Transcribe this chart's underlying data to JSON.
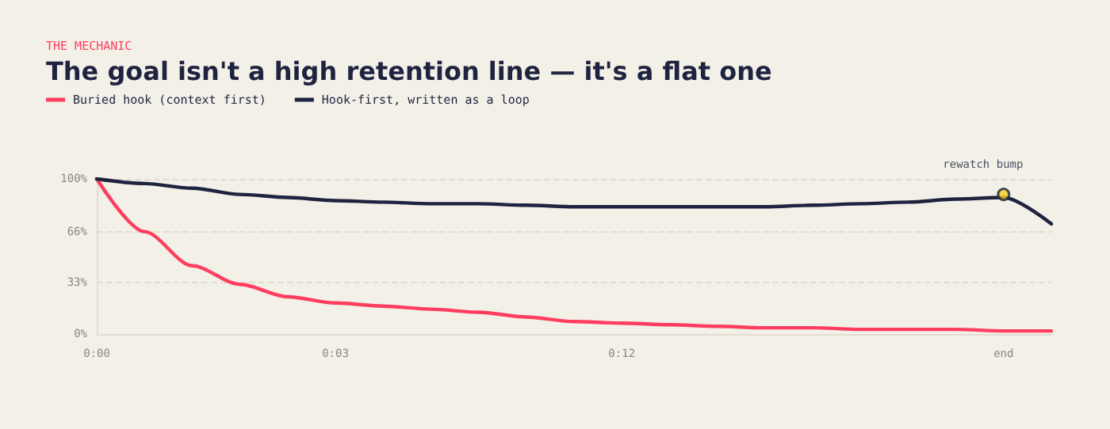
{
  "chart_data": {
    "type": "line",
    "subtitle": "THE MECHANIC",
    "title": "The goal isn't a high retention line — it's a flat one",
    "categories": [
      "0:00",
      null,
      null,
      null,
      null,
      "0:03",
      null,
      null,
      null,
      null,
      null,
      "0:12",
      null,
      null,
      null,
      null,
      null,
      null,
      null,
      "end",
      null
    ],
    "series": [
      {
        "name": "Buried hook (context first)",
        "color": "#ff3d5f",
        "values": [
          100,
          66,
          44,
          32,
          24,
          20,
          18,
          16,
          14,
          11,
          8,
          7,
          6,
          5,
          4,
          4,
          3,
          3,
          3,
          2,
          2
        ]
      },
      {
        "name": "Hook-first, written as a loop",
        "color": "#1e2340",
        "values": [
          100,
          97,
          94,
          90,
          88,
          86,
          85,
          84,
          84,
          83,
          82,
          82,
          82,
          82,
          82,
          83,
          84,
          85,
          87,
          88,
          71
        ]
      }
    ],
    "ylim": [
      0,
      100
    ],
    "yticks": [
      {
        "value": 0,
        "label": "0%"
      },
      {
        "value": 33,
        "label": "33%"
      },
      {
        "value": 66,
        "label": "66%"
      },
      {
        "value": 100,
        "label": "100%"
      }
    ],
    "annotations": [
      {
        "text": "rewatch bump",
        "x": "end",
        "y": 90
      }
    ],
    "grid": "y",
    "legend": "top left",
    "marker": "none",
    "line_style": "solid"
  }
}
